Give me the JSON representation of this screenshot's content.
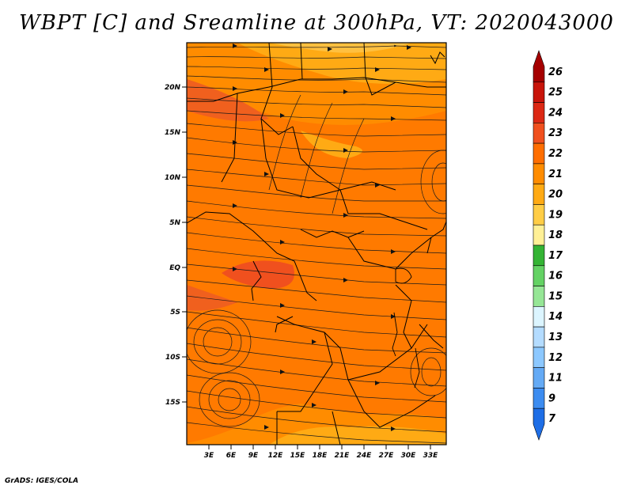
{
  "title": "WBPT [C] and Sreamline at 300hPa, VT: 2020043000",
  "footer": "GrADS: IGES/COLA",
  "map": {
    "lat_labels": [
      "20N",
      "15N",
      "10N",
      "5N",
      "EQ",
      "5S",
      "10S",
      "15S"
    ],
    "lon_labels": [
      "3E",
      "6E",
      "9E",
      "12E",
      "15E",
      "18E",
      "21E",
      "24E",
      "27E",
      "30E",
      "33E"
    ]
  },
  "colorbar": {
    "labels": [
      "26",
      "25",
      "24",
      "23",
      "22",
      "21",
      "20",
      "19",
      "18",
      "17",
      "16",
      "15",
      "14",
      "13",
      "12",
      "11",
      "9",
      "7"
    ],
    "colors": [
      "#a50000",
      "#c8140a",
      "#dc2814",
      "#f0501e",
      "#ff6e00",
      "#ff8c00",
      "#ffaa14",
      "#ffcd46",
      "#fff096",
      "#34b434",
      "#64d264",
      "#96e696",
      "#dcf5ff",
      "#b4dcff",
      "#8cc8ff",
      "#64aaf5",
      "#3c8cf0",
      "#1e6ee6"
    ]
  }
}
